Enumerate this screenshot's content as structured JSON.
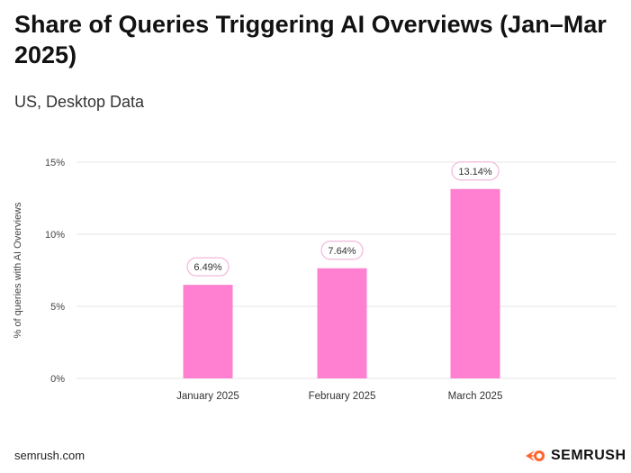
{
  "chart_data": {
    "type": "bar",
    "title": "Share of Queries Triggering AI Overviews (Jan–Mar 2025)",
    "subtitle": "US, Desktop Data",
    "categories": [
      "January 2025",
      "February 2025",
      "March 2025"
    ],
    "values": [
      6.49,
      7.64,
      13.14
    ],
    "data_labels": [
      "6.49%",
      "7.64%",
      "13.14%"
    ],
    "ylabel": "% of queries with AI Overviews",
    "xlabel": "",
    "ylim": [
      0,
      15
    ],
    "yticks": [
      0,
      5,
      10,
      15
    ],
    "ytick_labels": [
      "0%",
      "5%",
      "10%",
      "15%"
    ],
    "grid": true,
    "bar_color": "#ff80d0",
    "label_border_color": "#f3b8dc"
  },
  "footer": {
    "source": "semrush.com",
    "brand": "SEMRUSH",
    "brand_icon": "semrush-flame-icon",
    "brand_icon_color": "#ff642d"
  }
}
